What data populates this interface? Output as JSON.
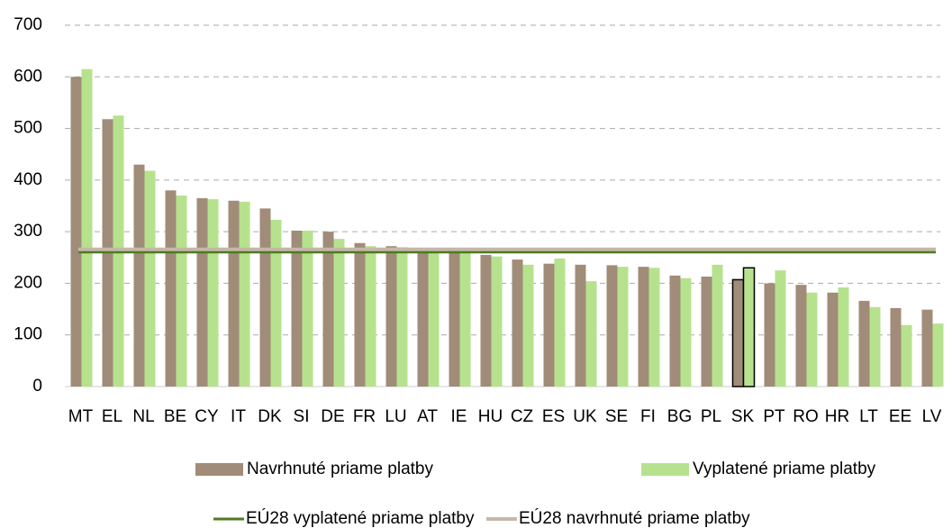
{
  "chart_data": {
    "type": "bar",
    "categories": [
      "MT",
      "EL",
      "NL",
      "BE",
      "CY",
      "IT",
      "DK",
      "SI",
      "DE",
      "FR",
      "LU",
      "AT",
      "IE",
      "HU",
      "CZ",
      "ES",
      "UK",
      "SE",
      "FI",
      "BG",
      "PL",
      "SK",
      "PT",
      "RO",
      "HR",
      "LT",
      "EE",
      "LV"
    ],
    "series": [
      {
        "name": "Navrhnuté priame platby",
        "color": "#a08c78",
        "values": [
          600,
          518,
          430,
          380,
          365,
          360,
          345,
          302,
          300,
          278,
          272,
          268,
          265,
          255,
          246,
          238,
          236,
          235,
          232,
          215,
          213,
          207,
          200,
          197,
          182,
          166,
          152,
          149
        ]
      },
      {
        "name": "Vyplatené priame platby",
        "color": "#b6e28e",
        "values": [
          615,
          525,
          418,
          370,
          363,
          358,
          323,
          302,
          286,
          272,
          270,
          266,
          262,
          252,
          236,
          248,
          204,
          232,
          230,
          210,
          236,
          230,
          225,
          182,
          192,
          154,
          119,
          122
        ]
      }
    ],
    "reference_lines": [
      {
        "name": "EÚ28 vyplatené priame platby",
        "color": "#4f7a22",
        "value": 260
      },
      {
        "name": "EÚ28 navrhnuté priame platby",
        "color": "#c4b8a8",
        "value": 265
      }
    ],
    "highlight_category": "SK",
    "ylim": [
      0,
      700
    ],
    "yticks": [
      0,
      100,
      200,
      300,
      400,
      500,
      600,
      700
    ],
    "grid": true
  }
}
